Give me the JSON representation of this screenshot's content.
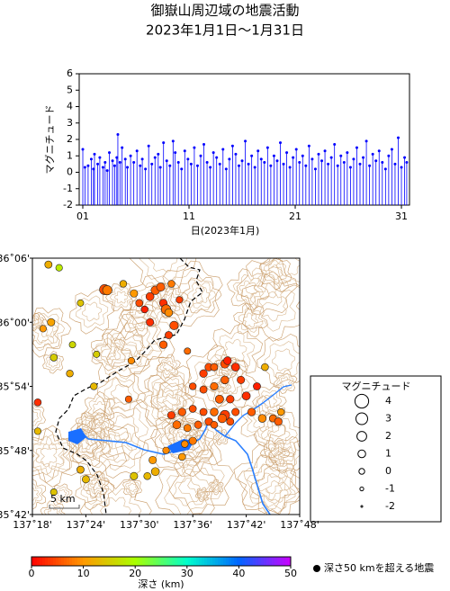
{
  "chart_data": [
    {
      "type": "stem",
      "title": "御嶽山周辺域の地震活動",
      "subtitle": "2023年1月1日～1月31日",
      "color": "#0000ff",
      "xlabel": "日(2023年1月)",
      "ylabel": "マグニチュード",
      "xlim": [
        0.66,
        31.76
      ],
      "xticks": [
        {
          "value": 1,
          "label": "01"
        },
        {
          "value": 11,
          "label": "11"
        },
        {
          "value": 21,
          "label": "21"
        },
        {
          "value": 31,
          "label": "31"
        }
      ],
      "ylim": [
        -2,
        6
      ],
      "yticks": [
        -2,
        -1,
        0,
        1,
        2,
        3,
        4,
        5,
        6
      ],
      "x": [
        1.0,
        1.2,
        1.5,
        1.8,
        2.0,
        2.1,
        2.4,
        2.6,
        2.9,
        3.1,
        3.3,
        3.5,
        3.8,
        4.0,
        4.2,
        4.3,
        4.5,
        4.7,
        5.0,
        5.2,
        5.5,
        5.8,
        6.1,
        6.4,
        6.6,
        6.9,
        7.2,
        7.5,
        7.8,
        8.1,
        8.3,
        8.6,
        8.9,
        9.2,
        9.5,
        9.7,
        10.0,
        10.3,
        10.6,
        10.9,
        11.2,
        11.5,
        11.8,
        12.1,
        12.4,
        12.7,
        13.0,
        13.3,
        13.6,
        13.9,
        14.2,
        14.5,
        14.8,
        15.1,
        15.4,
        15.7,
        16.0,
        16.3,
        16.6,
        16.9,
        17.2,
        17.5,
        17.8,
        18.1,
        18.4,
        18.7,
        19.0,
        19.3,
        19.6,
        19.9,
        20.2,
        20.5,
        20.8,
        21.1,
        21.4,
        21.7,
        22.0,
        22.3,
        22.6,
        22.9,
        23.2,
        23.5,
        23.8,
        24.1,
        24.4,
        24.7,
        25.0,
        25.3,
        25.6,
        25.9,
        26.2,
        26.5,
        26.8,
        27.1,
        27.4,
        27.7,
        28.0,
        28.3,
        28.6,
        28.9,
        29.2,
        29.5,
        29.8,
        30.1,
        30.4,
        30.7,
        31.0,
        31.3,
        31.5
      ],
      "values": [
        1.4,
        0.3,
        0.4,
        0.8,
        0.2,
        1.1,
        0.5,
        0.9,
        0.3,
        0.6,
        0.1,
        1.2,
        0.7,
        0.4,
        0.9,
        2.3,
        0.6,
        1.5,
        0.8,
        0.3,
        1.0,
        0.6,
        1.3,
        0.4,
        0.8,
        0.2,
        1.6,
        0.5,
        0.9,
        1.1,
        0.3,
        1.8,
        0.7,
        0.4,
        1.9,
        1.2,
        0.6,
        0.2,
        1.3,
        0.8,
        0.5,
        1.5,
        0.4,
        1.0,
        1.7,
        0.6,
        0.3,
        1.2,
        0.9,
        0.5,
        1.4,
        0.2,
        0.8,
        1.6,
        1.1,
        0.4,
        0.7,
        1.9,
        0.5,
        1.0,
        0.3,
        1.3,
        0.8,
        0.6,
        1.5,
        0.4,
        1.0,
        0.7,
        1.8,
        0.5,
        1.2,
        0.3,
        0.9,
        1.4,
        0.6,
        1.0,
        0.4,
        1.6,
        0.8,
        0.2,
        1.1,
        0.7,
        1.3,
        0.5,
        0.9,
        1.7,
        0.4,
        1.0,
        0.6,
        1.2,
        0.3,
        0.8,
        1.5,
        0.5,
        0.9,
        1.9,
        0.4,
        1.1,
        0.7,
        1.3,
        0.6,
        0.2,
        1.0,
        1.4,
        0.5,
        2.1,
        0.3,
        0.9,
        0.6
      ]
    },
    {
      "type": "map-scatter",
      "xlim": [
        137.3,
        137.8
      ],
      "xticks": [
        {
          "value": 137.3,
          "label": "137˚18'"
        },
        {
          "value": 137.4,
          "label": "137˚24'"
        },
        {
          "value": 137.5,
          "label": "137˚30'"
        },
        {
          "value": 137.6,
          "label": "137˚36'"
        },
        {
          "value": 137.7,
          "label": "137˚42'"
        },
        {
          "value": 137.8,
          "label": "137˚48'"
        }
      ],
      "ylim": [
        35.7,
        36.1
      ],
      "yticks": [
        {
          "value": 35.7,
          "label": "35˚42'"
        },
        {
          "value": 35.8,
          "label": "35˚48'"
        },
        {
          "value": 35.9,
          "label": "35˚54'"
        },
        {
          "value": 36.0,
          "label": "36˚00'"
        },
        {
          "value": 36.1,
          "label": "36˚06'"
        }
      ],
      "scale_label": "5 km",
      "size_legend": {
        "title": "マグニチュード",
        "values": [
          4,
          3,
          2,
          1,
          0,
          -1,
          -2
        ]
      },
      "colorbar": {
        "label": "深さ (km)",
        "lim": [
          0,
          50
        ],
        "ticks": [
          0,
          10,
          20,
          30,
          40,
          50
        ],
        "colors": [
          "#ff0000",
          "#ff9900",
          "#aaff00",
          "#00ffcc",
          "#0066ff",
          "#cc00ff"
        ]
      },
      "deep_note": "深さ50 kmを超える地震",
      "points": [
        [
          137.435,
          36.051,
          2.2,
          5
        ],
        [
          137.44,
          36.05,
          1.8,
          8
        ],
        [
          137.52,
          36.04,
          1.2,
          4
        ],
        [
          137.53,
          36.05,
          1.5,
          6
        ],
        [
          137.545,
          36.03,
          1.0,
          3
        ],
        [
          137.55,
          36.02,
          1.9,
          7
        ],
        [
          137.555,
          36.015,
          1.1,
          9
        ],
        [
          137.5,
          36.03,
          0.8,
          5
        ],
        [
          137.49,
          36.045,
          0.9,
          10
        ],
        [
          137.51,
          36.02,
          0.6,
          2
        ],
        [
          137.54,
          36.055,
          1.3,
          6
        ],
        [
          137.56,
          36.06,
          0.7,
          8
        ],
        [
          137.565,
          35.995,
          1.4,
          5
        ],
        [
          137.555,
          35.98,
          0.8,
          4
        ],
        [
          137.545,
          35.965,
          1.0,
          6
        ],
        [
          137.52,
          36.0,
          0.9,
          3
        ],
        [
          137.575,
          36.035,
          0.5,
          4
        ],
        [
          137.47,
          36.06,
          0.6,
          12
        ],
        [
          137.33,
          36.09,
          0.8,
          12
        ],
        [
          137.35,
          36.085,
          0.5,
          18
        ],
        [
          137.39,
          36.03,
          0.4,
          14
        ],
        [
          137.335,
          36.0,
          0.9,
          11
        ],
        [
          137.32,
          35.99,
          0.5,
          10
        ],
        [
          137.375,
          35.965,
          0.4,
          16
        ],
        [
          137.34,
          35.945,
          0.7,
          15
        ],
        [
          137.42,
          35.95,
          0.4,
          15
        ],
        [
          137.37,
          35.92,
          0.6,
          12
        ],
        [
          137.415,
          35.9,
          0.6,
          13
        ],
        [
          137.31,
          35.875,
          0.7,
          3
        ],
        [
          137.31,
          35.83,
          0.5,
          13
        ],
        [
          137.39,
          35.77,
          0.8,
          12
        ],
        [
          137.4,
          35.755,
          0.8,
          13
        ],
        [
          137.34,
          35.735,
          0.5,
          14
        ],
        [
          137.48,
          35.88,
          0.5,
          6
        ],
        [
          137.525,
          35.785,
          0.9,
          10
        ],
        [
          137.53,
          35.767,
          1.2,
          12
        ],
        [
          137.515,
          35.76,
          0.7,
          13
        ],
        [
          137.49,
          35.76,
          0.9,
          14
        ],
        [
          137.485,
          35.94,
          0.5,
          9
        ],
        [
          137.59,
          35.955,
          0.4,
          7
        ],
        [
          137.63,
          35.93,
          1.0,
          5
        ],
        [
          137.62,
          35.92,
          1.0,
          4
        ],
        [
          137.64,
          35.93,
          0.8,
          6
        ],
        [
          137.66,
          35.935,
          1.4,
          5
        ],
        [
          137.68,
          35.93,
          1.2,
          3
        ],
        [
          137.69,
          35.91,
          0.9,
          4
        ],
        [
          137.66,
          35.91,
          1.1,
          6
        ],
        [
          137.64,
          35.9,
          1.0,
          7
        ],
        [
          137.62,
          35.895,
          0.8,
          5
        ],
        [
          137.6,
          35.9,
          0.6,
          5
        ],
        [
          137.65,
          35.88,
          1.3,
          6
        ],
        [
          137.67,
          35.88,
          1.0,
          4
        ],
        [
          137.7,
          35.885,
          1.2,
          3
        ],
        [
          137.72,
          35.9,
          0.8,
          2
        ],
        [
          137.71,
          35.86,
          1.0,
          6
        ],
        [
          137.68,
          35.86,
          0.9,
          5
        ],
        [
          137.66,
          35.855,
          2.0,
          4
        ],
        [
          137.655,
          35.85,
          1.5,
          6
        ],
        [
          137.64,
          35.86,
          1.1,
          7
        ],
        [
          137.62,
          35.86,
          0.8,
          5
        ],
        [
          137.6,
          35.865,
          0.7,
          5
        ],
        [
          137.58,
          35.86,
          1.0,
          6
        ],
        [
          137.56,
          35.855,
          0.9,
          4
        ],
        [
          137.57,
          35.84,
          1.2,
          7
        ],
        [
          137.59,
          35.835,
          0.8,
          8
        ],
        [
          137.61,
          35.84,
          0.9,
          6
        ],
        [
          137.63,
          35.845,
          1.0,
          5
        ],
        [
          137.73,
          35.85,
          1.1,
          9
        ],
        [
          137.75,
          35.85,
          0.8,
          7
        ],
        [
          137.76,
          35.845,
          1.0,
          6
        ],
        [
          137.735,
          35.93,
          0.7,
          12
        ],
        [
          137.765,
          35.86,
          0.6,
          10
        ],
        [
          137.665,
          35.94,
          1.0,
          2
        ],
        [
          137.64,
          35.84,
          0.7,
          6
        ],
        [
          137.67,
          35.845,
          0.8,
          5
        ],
        [
          137.6,
          35.815,
          0.9,
          8
        ],
        [
          137.585,
          35.81,
          0.6,
          9
        ],
        [
          137.58,
          35.79,
          0.7,
          10
        ],
        [
          137.55,
          35.8,
          0.5,
          9
        ]
      ]
    }
  ]
}
